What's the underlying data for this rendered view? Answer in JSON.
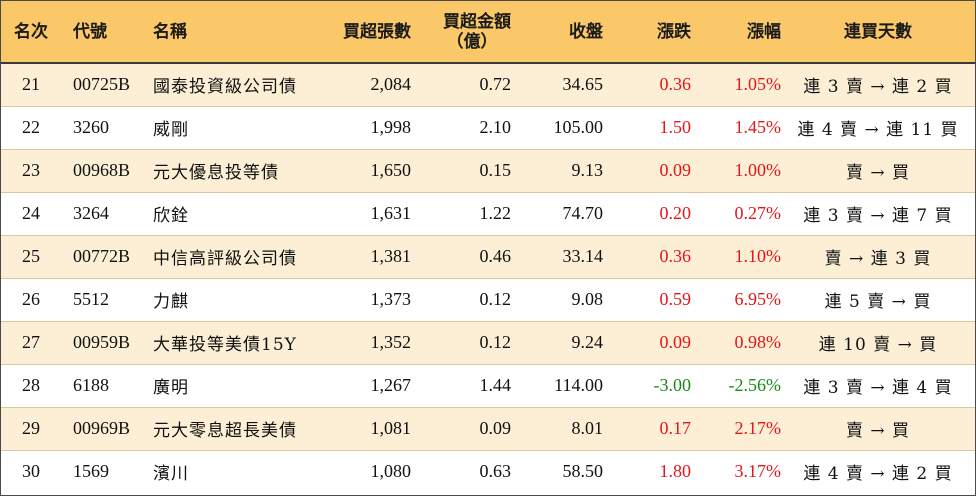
{
  "headers": {
    "rank": "名次",
    "code": "代號",
    "name": "名稱",
    "net_buy_lots": "買超張數",
    "net_buy_amount_line1": "買超金額",
    "net_buy_amount_line2": "（億）",
    "close": "收盤",
    "change": "漲跌",
    "change_pct": "漲幅",
    "streak": "連買天數"
  },
  "colors": {
    "header_bg": "#fbc869",
    "odd_row_bg": "#fcefd5",
    "up": "#e3161b",
    "down": "#1a8a1a"
  },
  "rows": [
    {
      "rank": "21",
      "code": "00725B",
      "name": "國泰投資級公司債",
      "lots": "2,084",
      "amount": "0.72",
      "close": "34.65",
      "change": "0.36",
      "pct": "1.05%",
      "dir": "up",
      "streak": "連 3 賣 → 連 2 買"
    },
    {
      "rank": "22",
      "code": "3260",
      "name": "威剛",
      "lots": "1,998",
      "amount": "2.10",
      "close": "105.00",
      "change": "1.50",
      "pct": "1.45%",
      "dir": "up",
      "streak": "連 4 賣 → 連 11 買"
    },
    {
      "rank": "23",
      "code": "00968B",
      "name": "元大優息投等債",
      "lots": "1,650",
      "amount": "0.15",
      "close": "9.13",
      "change": "0.09",
      "pct": "1.00%",
      "dir": "up",
      "streak": "賣 → 買"
    },
    {
      "rank": "24",
      "code": "3264",
      "name": "欣銓",
      "lots": "1,631",
      "amount": "1.22",
      "close": "74.70",
      "change": "0.20",
      "pct": "0.27%",
      "dir": "up",
      "streak": "連 3 賣 → 連 7 買"
    },
    {
      "rank": "25",
      "code": "00772B",
      "name": "中信高評級公司債",
      "lots": "1,381",
      "amount": "0.46",
      "close": "33.14",
      "change": "0.36",
      "pct": "1.10%",
      "dir": "up",
      "streak": "賣 → 連 3 買"
    },
    {
      "rank": "26",
      "code": "5512",
      "name": "力麒",
      "lots": "1,373",
      "amount": "0.12",
      "close": "9.08",
      "change": "0.59",
      "pct": "6.95%",
      "dir": "up",
      "streak": "連 5 賣 → 買"
    },
    {
      "rank": "27",
      "code": "00959B",
      "name": "大華投等美債15Y",
      "lots": "1,352",
      "amount": "0.12",
      "close": "9.24",
      "change": "0.09",
      "pct": "0.98%",
      "dir": "up",
      "streak": "連 10 賣 → 買"
    },
    {
      "rank": "28",
      "code": "6188",
      "name": "廣明",
      "lots": "1,267",
      "amount": "1.44",
      "close": "114.00",
      "change": "-3.00",
      "pct": "-2.56%",
      "dir": "down",
      "streak": "連 3 賣 → 連 4 買"
    },
    {
      "rank": "29",
      "code": "00969B",
      "name": "元大零息超長美債",
      "lots": "1,081",
      "amount": "0.09",
      "close": "8.01",
      "change": "0.17",
      "pct": "2.17%",
      "dir": "up",
      "streak": "賣 → 買"
    },
    {
      "rank": "30",
      "code": "1569",
      "name": "濱川",
      "lots": "1,080",
      "amount": "0.63",
      "close": "58.50",
      "change": "1.80",
      "pct": "3.17%",
      "dir": "up",
      "streak": "連 4 賣 → 連 2 買"
    }
  ]
}
